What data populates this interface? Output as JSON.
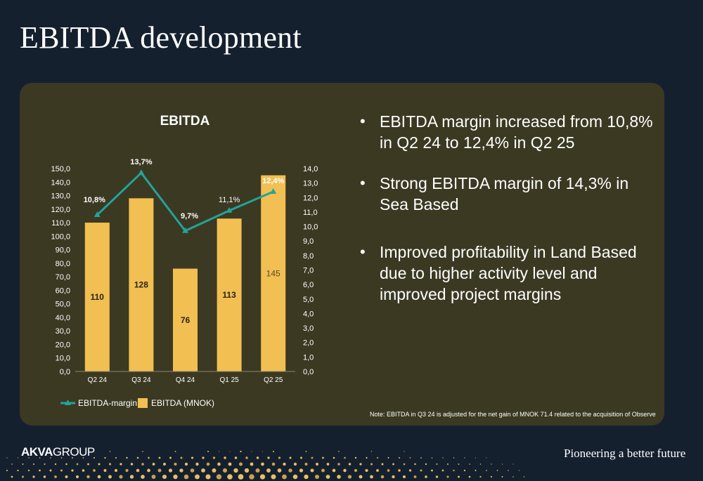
{
  "page": {
    "title": "EBITDA development",
    "note": "Note: EBITDA in Q3 24 is adjusted for the net gain of MNOK 71.4 related to the acquisition of Observe",
    "bullets": [
      "EBITDA margin increased from 10,8% in Q2 24 to 12,4% in Q2 25",
      "Strong EBITDA margin of 14,3% in Sea Based",
      "Improved profitability in Land Based due to higher activity level and improved project margins"
    ],
    "footer": {
      "logo_bold": "AKVA",
      "logo_light": "GROUP",
      "tagline": "Pioneering a better future"
    }
  },
  "chart_data": {
    "type": "bar",
    "title": "EBITDA",
    "categories": [
      "Q2 24",
      "Q3 24",
      "Q4 24",
      "Q1 25",
      "Q2 25"
    ],
    "series": [
      {
        "name": "EBITDA (MNOK)",
        "type": "bar",
        "axis": "left",
        "values": [
          110,
          128,
          76,
          113,
          145
        ],
        "labels": [
          "110",
          "128",
          "76",
          "113",
          "145"
        ]
      },
      {
        "name": "EBITDA-margin",
        "type": "line",
        "axis": "right",
        "values": [
          10.8,
          13.7,
          9.7,
          11.1,
          12.4
        ],
        "labels": [
          "10,8%",
          "13,7%",
          "9,7%",
          "11,1%",
          "12,4%"
        ]
      }
    ],
    "left_axis": {
      "min": 0,
      "max": 150,
      "step": 10,
      "ticks": [
        "0,0",
        "10,0",
        "20,0",
        "30,0",
        "40,0",
        "50,0",
        "60,0",
        "70,0",
        "80,0",
        "90,0",
        "100,0",
        "110,0",
        "120,0",
        "130,0",
        "140,0",
        "150,0"
      ]
    },
    "right_axis": {
      "min": 0,
      "max": 14,
      "step": 1,
      "ticks": [
        "0,0",
        "1,0",
        "2,0",
        "3,0",
        "4,0",
        "5,0",
        "6,0",
        "7,0",
        "8,0",
        "9,0",
        "10,0",
        "11,0",
        "12,0",
        "13,0",
        "14,0"
      ]
    },
    "legend_position": "bottom-left",
    "grid": false,
    "colors": {
      "bar": "#f2bf52",
      "line": "#23a39a",
      "background": "#3b3922",
      "page": "#15202f"
    }
  }
}
